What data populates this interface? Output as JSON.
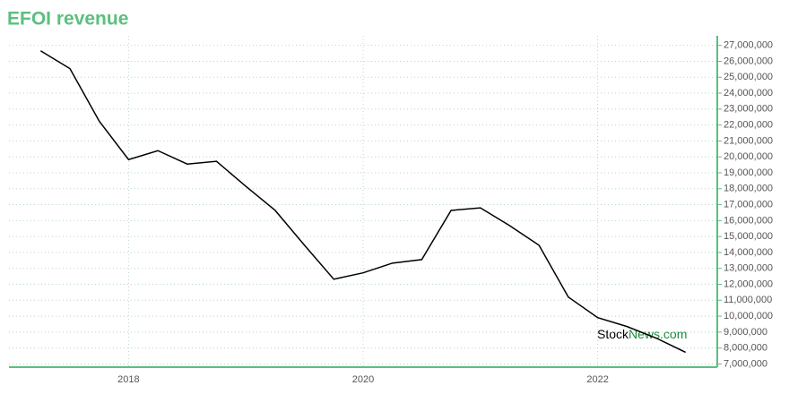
{
  "chart_data": {
    "type": "line",
    "title": "EFOI revenue",
    "x": [
      2017.25,
      2017.5,
      2017.75,
      2018.0,
      2018.25,
      2018.5,
      2018.75,
      2019.0,
      2019.25,
      2019.5,
      2019.75,
      2020.0,
      2020.25,
      2020.5,
      2020.75,
      2021.0,
      2021.25,
      2021.5,
      2021.75,
      2022.0,
      2022.25,
      2022.5,
      2022.75
    ],
    "series": [
      {
        "name": "EFOI revenue",
        "color": "#000000",
        "values": [
          26660000,
          25540000,
          22240000,
          19830000,
          20390000,
          19550000,
          19720000,
          18150000,
          16640000,
          14450000,
          12320000,
          12720000,
          13330000,
          13550000,
          16640000,
          16800000,
          15680000,
          14450000,
          11200000,
          9910000,
          9350000,
          8620000,
          7730000
        ]
      }
    ],
    "xlim": [
      2016.98,
      2023.02
    ],
    "xticks": [
      2018,
      2020,
      2022
    ],
    "ylim": [
      6800000,
      27600000
    ],
    "yticks": [
      {
        "value": 7000000,
        "label": "7,000,000"
      },
      {
        "value": 8000000,
        "label": "8,000,000"
      },
      {
        "value": 9000000,
        "label": "9,000,000"
      },
      {
        "value": 10000000,
        "label": "10,000,000"
      },
      {
        "value": 11000000,
        "label": "11,000,000"
      },
      {
        "value": 12000000,
        "label": "12,000,000"
      },
      {
        "value": 13000000,
        "label": "13,000,000"
      },
      {
        "value": 14000000,
        "label": "14,000,000"
      },
      {
        "value": 15000000,
        "label": "15,000,000"
      },
      {
        "value": 16000000,
        "label": "16,000,000"
      },
      {
        "value": 17000000,
        "label": "17,000,000"
      },
      {
        "value": 18000000,
        "label": "18,000,000"
      },
      {
        "value": 19000000,
        "label": "19,000,000"
      },
      {
        "value": 20000000,
        "label": "20,000,000"
      },
      {
        "value": 21000000,
        "label": "21,000,000"
      },
      {
        "value": 22000000,
        "label": "22,000,000"
      },
      {
        "value": 23000000,
        "label": "23,000,000"
      },
      {
        "value": 24000000,
        "label": "24,000,000"
      },
      {
        "value": 25000000,
        "label": "25,000,000"
      },
      {
        "value": 26000000,
        "label": "26,000,000"
      },
      {
        "value": 27000000,
        "label": "27,000,000"
      }
    ],
    "grid": true,
    "axis_color": "#5cbf7f",
    "watermark": {
      "prefix": "Stock",
      "suffix": "News.com"
    }
  }
}
